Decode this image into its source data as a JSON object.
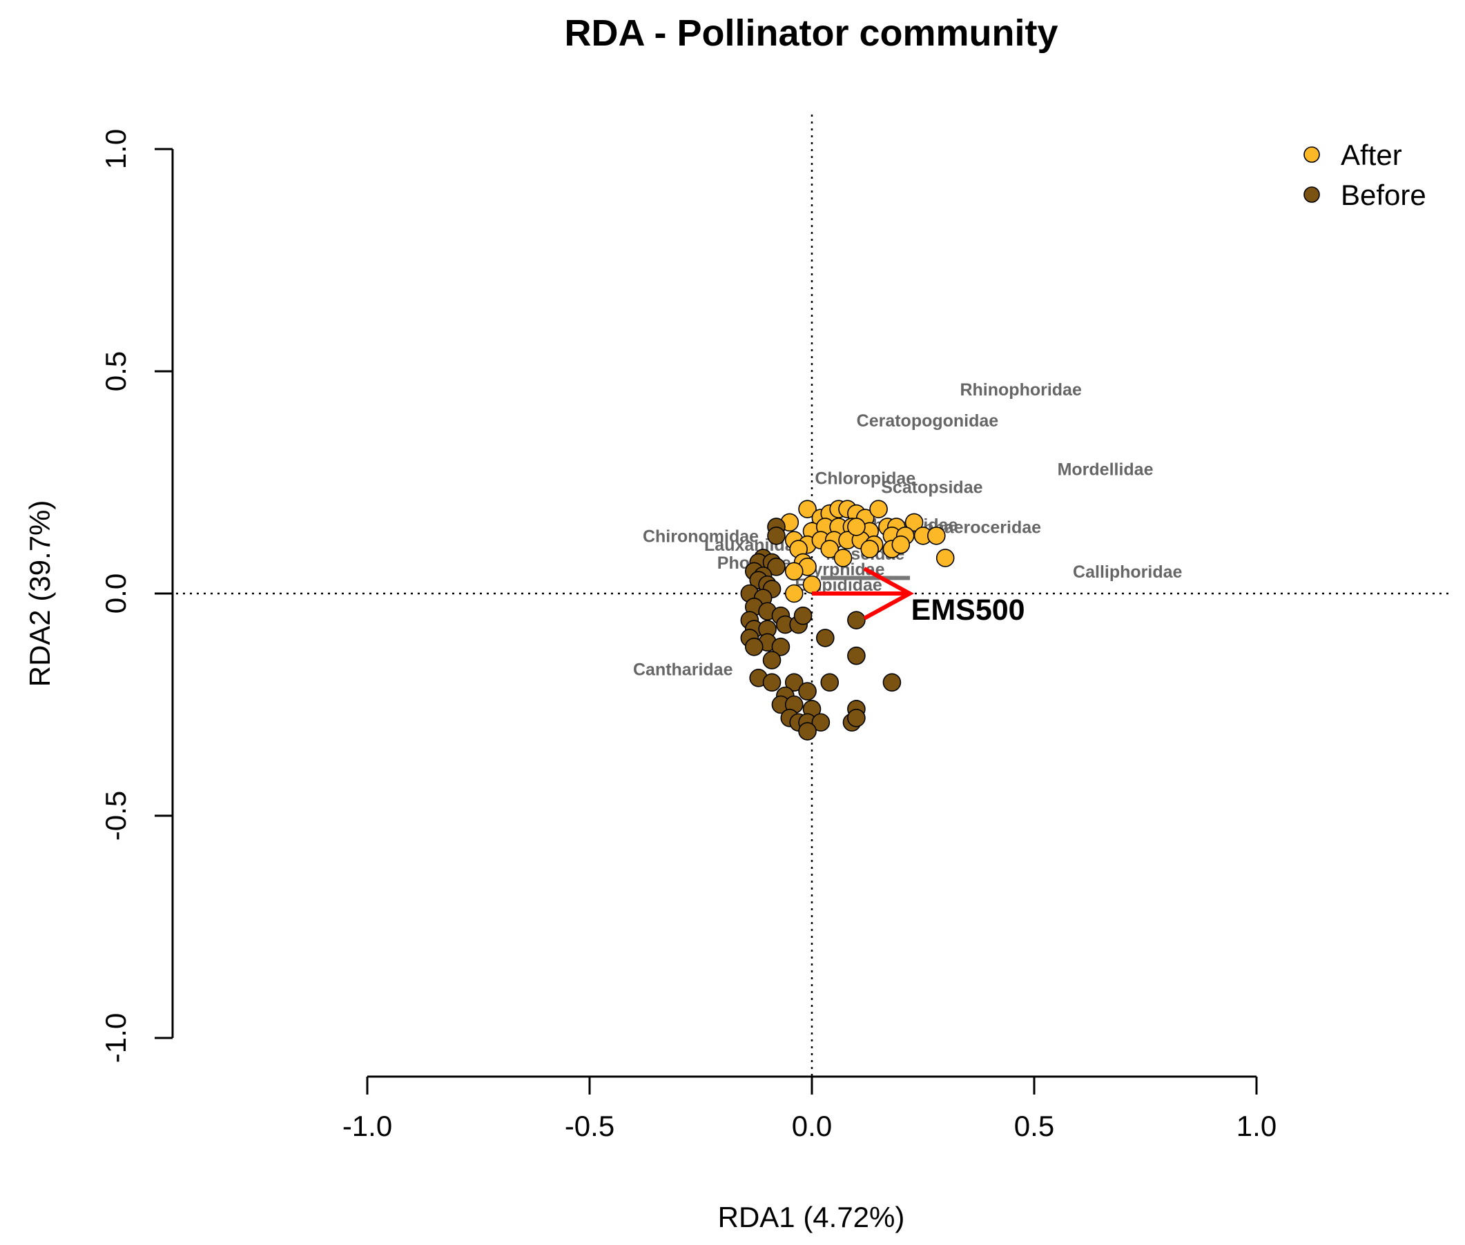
{
  "chart_data": {
    "type": "scatter",
    "title": "RDA - Pollinator community",
    "xlabel": "RDA1 (4.72%)",
    "ylabel": "RDA2 (39.7%)",
    "xlim": [
      -1.0,
      1.0
    ],
    "ylim": [
      -1.0,
      1.0
    ],
    "xticks": [
      -1.0,
      -0.5,
      0.0,
      0.5,
      1.0
    ],
    "yticks": [
      -1.0,
      -0.5,
      0.0,
      0.5,
      1.0
    ],
    "xtick_labels": [
      "-1.0",
      "-0.5",
      "0.0",
      "0.5",
      "1.0"
    ],
    "ytick_labels": [
      "-1.0",
      "-0.5",
      "0.0",
      "0.5",
      "1.0"
    ],
    "reference_lines": {
      "x": 0.0,
      "y": 0.0,
      "style": "dotted"
    },
    "legend_position": "top-right",
    "legend": [
      {
        "label": "After",
        "color": "#FDB827"
      },
      {
        "label": "Before",
        "color": "#7A5212"
      }
    ],
    "series": [
      {
        "name": "After",
        "color": "#FDB827",
        "points": [
          [
            -0.01,
            0.19
          ],
          [
            0.02,
            0.17
          ],
          [
            0.04,
            0.18
          ],
          [
            0.06,
            0.19
          ],
          [
            0.08,
            0.19
          ],
          [
            0.1,
            0.18
          ],
          [
            0.12,
            0.17
          ],
          [
            0.15,
            0.19
          ],
          [
            0.17,
            0.15
          ],
          [
            0.19,
            0.15
          ],
          [
            0.23,
            0.16
          ],
          [
            0.25,
            0.13
          ],
          [
            0.28,
            0.13
          ],
          [
            0.3,
            0.08
          ],
          [
            -0.05,
            0.16
          ],
          [
            0.0,
            0.14
          ],
          [
            0.03,
            0.15
          ],
          [
            0.06,
            0.15
          ],
          [
            0.09,
            0.15
          ],
          [
            0.13,
            0.14
          ],
          [
            -0.04,
            0.12
          ],
          [
            -0.01,
            0.11
          ],
          [
            0.02,
            0.12
          ],
          [
            0.05,
            0.12
          ],
          [
            0.08,
            0.12
          ],
          [
            0.11,
            0.12
          ],
          [
            0.14,
            0.11
          ],
          [
            0.18,
            0.13
          ],
          [
            0.21,
            0.13
          ],
          [
            -0.03,
            0.1
          ],
          [
            0.04,
            0.1
          ],
          [
            0.13,
            0.1
          ],
          [
            0.18,
            0.1
          ],
          [
            0.2,
            0.11
          ],
          [
            -0.02,
            0.07
          ],
          [
            0.07,
            0.08
          ],
          [
            -0.01,
            0.06
          ],
          [
            -0.04,
            0.05
          ],
          [
            0.0,
            0.02
          ],
          [
            -0.04,
            0.0
          ],
          [
            0.1,
            0.15
          ]
        ]
      },
      {
        "name": "Before",
        "color": "#7A5212",
        "points": [
          [
            -0.08,
            0.15
          ],
          [
            -0.08,
            0.13
          ],
          [
            -0.11,
            0.08
          ],
          [
            -0.12,
            0.07
          ],
          [
            -0.09,
            0.07
          ],
          [
            -0.08,
            0.06
          ],
          [
            -0.13,
            0.05
          ],
          [
            -0.11,
            0.04
          ],
          [
            -0.12,
            0.03
          ],
          [
            -0.1,
            0.02
          ],
          [
            -0.09,
            0.01
          ],
          [
            -0.14,
            0.0
          ],
          [
            -0.11,
            -0.01
          ],
          [
            -0.13,
            -0.03
          ],
          [
            -0.1,
            -0.04
          ],
          [
            -0.07,
            -0.05
          ],
          [
            -0.14,
            -0.06
          ],
          [
            -0.13,
            -0.08
          ],
          [
            -0.1,
            -0.08
          ],
          [
            -0.06,
            -0.07
          ],
          [
            -0.03,
            -0.07
          ],
          [
            -0.14,
            -0.1
          ],
          [
            -0.1,
            -0.11
          ],
          [
            -0.13,
            -0.12
          ],
          [
            -0.07,
            -0.12
          ],
          [
            -0.09,
            -0.15
          ],
          [
            -0.12,
            -0.19
          ],
          [
            -0.09,
            -0.2
          ],
          [
            -0.04,
            -0.2
          ],
          [
            0.04,
            -0.2
          ],
          [
            -0.01,
            -0.22
          ],
          [
            -0.06,
            -0.23
          ],
          [
            -0.07,
            -0.25
          ],
          [
            -0.04,
            -0.25
          ],
          [
            0.0,
            -0.26
          ],
          [
            -0.05,
            -0.28
          ],
          [
            -0.03,
            -0.29
          ],
          [
            -0.01,
            -0.29
          ],
          [
            0.02,
            -0.29
          ],
          [
            -0.01,
            -0.31
          ],
          [
            0.1,
            -0.06
          ],
          [
            0.1,
            -0.14
          ],
          [
            0.03,
            -0.1
          ],
          [
            0.18,
            -0.2
          ],
          [
            0.1,
            -0.26
          ],
          [
            0.09,
            -0.29
          ],
          [
            0.1,
            -0.28
          ],
          [
            -0.02,
            -0.05
          ]
        ]
      }
    ],
    "species_scores": [
      {
        "label": "Rhinophoridae",
        "x": 0.47,
        "y": 0.46
      },
      {
        "label": "Ceratopogonidae",
        "x": 0.26,
        "y": 0.39
      },
      {
        "label": "Mordellidae",
        "x": 0.66,
        "y": 0.28
      },
      {
        "label": "Chloropidae",
        "x": 0.12,
        "y": 0.26
      },
      {
        "label": "Scatopsidae",
        "x": 0.27,
        "y": 0.24
      },
      {
        "label": "Chironomidae",
        "x": -0.25,
        "y": 0.13
      },
      {
        "label": "Sphaeroceridae",
        "x": 0.37,
        "y": 0.15
      },
      {
        "label": "Anthomyiidae",
        "x": 0.2,
        "y": 0.155
      },
      {
        "label": "Lauxaniidae",
        "x": -0.13,
        "y": 0.11
      },
      {
        "label": "Muscidae",
        "x": 0.12,
        "y": 0.09
      },
      {
        "label": "Phoridae",
        "x": -0.13,
        "y": 0.07
      },
      {
        "label": "Syrphidae",
        "x": 0.07,
        "y": 0.055
      },
      {
        "label": "Calliphoridae",
        "x": 0.71,
        "y": 0.05
      },
      {
        "label": "Empididae",
        "x": 0.06,
        "y": 0.02
      },
      {
        "label": "Cantharidae",
        "x": -0.29,
        "y": -0.17
      }
    ],
    "env_vectors": [
      {
        "label": "EMS500",
        "x": 0.22,
        "y": 0.0,
        "color": "#FF0000"
      }
    ]
  }
}
